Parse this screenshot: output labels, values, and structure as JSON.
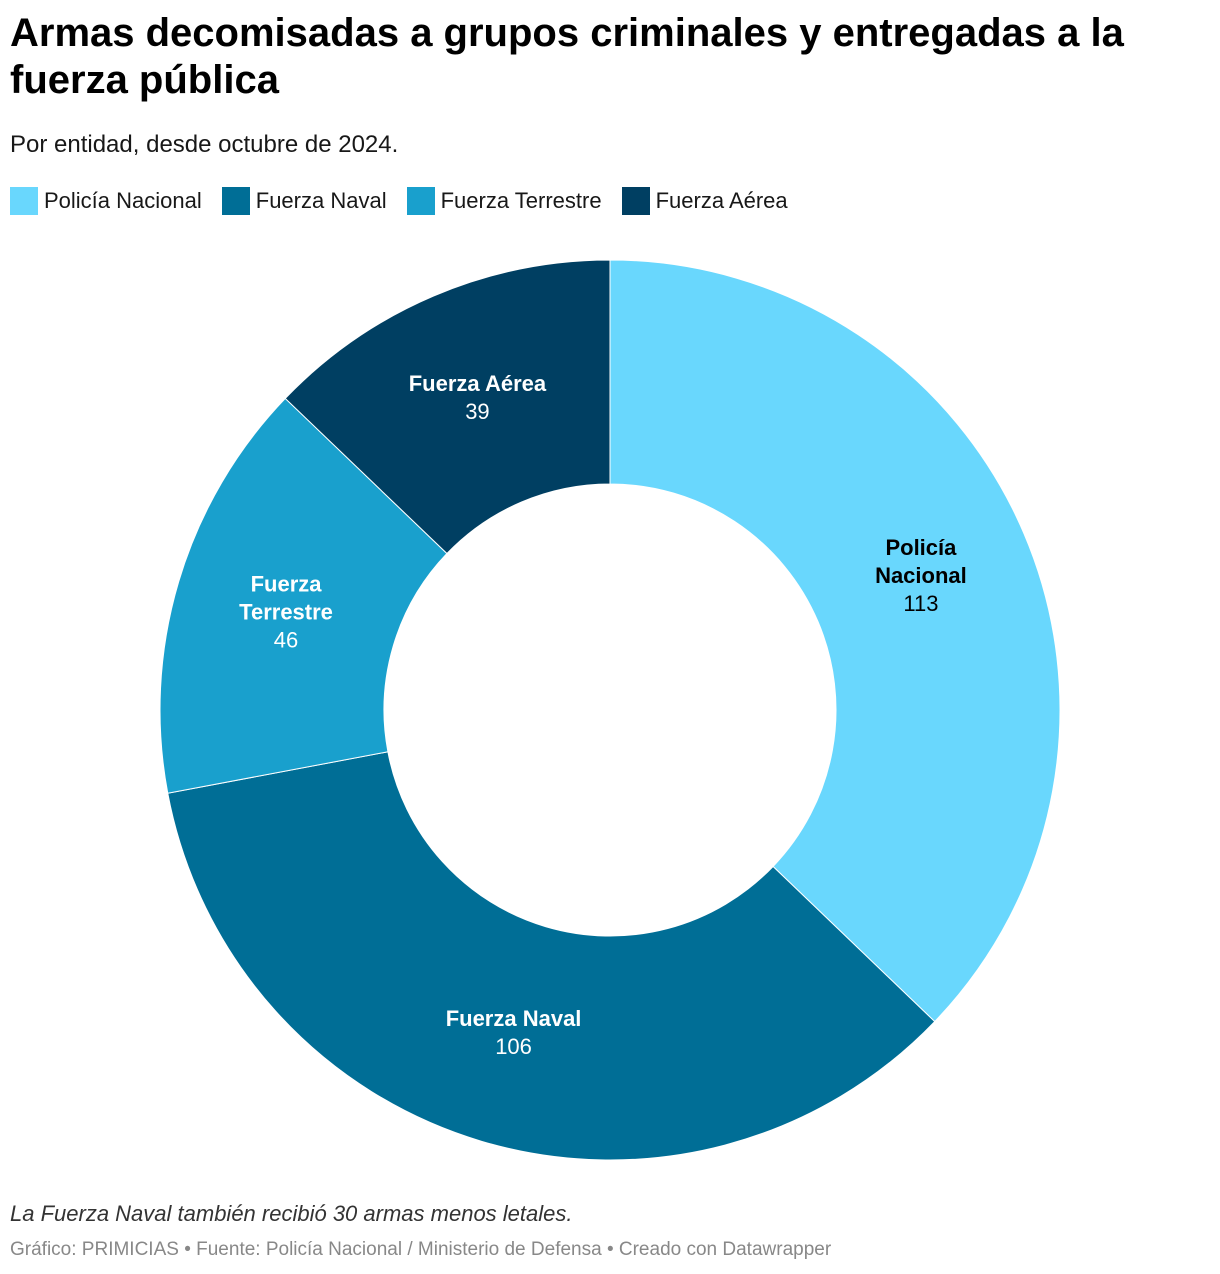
{
  "header": {
    "title": "Armas decomisadas a grupos criminales y entregadas a la fuerza pública",
    "subtitle": "Por entidad, desde octubre de 2024."
  },
  "legend": [
    {
      "label": "Policía Nacional",
      "color": "#69d7fd"
    },
    {
      "label": "Fuerza Naval",
      "color": "#006e96"
    },
    {
      "label": "Fuerza Terrestre",
      "color": "#19a0cd"
    },
    {
      "label": "Fuerza Aérea",
      "color": "#003f62"
    }
  ],
  "chart_data": {
    "type": "pie",
    "variant": "donut",
    "title": "Armas decomisadas a grupos criminales y entregadas a la fuerza pública",
    "subtitle": "Por entidad, desde octubre de 2024.",
    "categories": [
      "Policía Nacional",
      "Fuerza Naval",
      "Fuerza Terrestre",
      "Fuerza Aérea"
    ],
    "values": [
      113,
      106,
      46,
      39
    ],
    "colors": [
      "#69d7fd",
      "#006e96",
      "#19a0cd",
      "#003f62"
    ],
    "label_colors": [
      "#000000",
      "#ffffff",
      "#ffffff",
      "#ffffff"
    ],
    "slice_labels": [
      {
        "lines": [
          "Policía",
          "Nacional"
        ],
        "value": "113"
      },
      {
        "lines": [
          "Fuerza Naval"
        ],
        "value": "106"
      },
      {
        "lines": [
          "Fuerza",
          "Terrestre"
        ],
        "value": "46"
      },
      {
        "lines": [
          "Fuerza Aérea"
        ],
        "value": "39"
      }
    ],
    "legend_position": "top-left"
  },
  "footer": {
    "notes": "La Fuerza Naval también recibió 30 armas menos letales.",
    "credits": "Gráfico: PRIMICIAS • Fuente: Policía Nacional / Ministerio de Defensa • Creado con Datawrapper"
  }
}
